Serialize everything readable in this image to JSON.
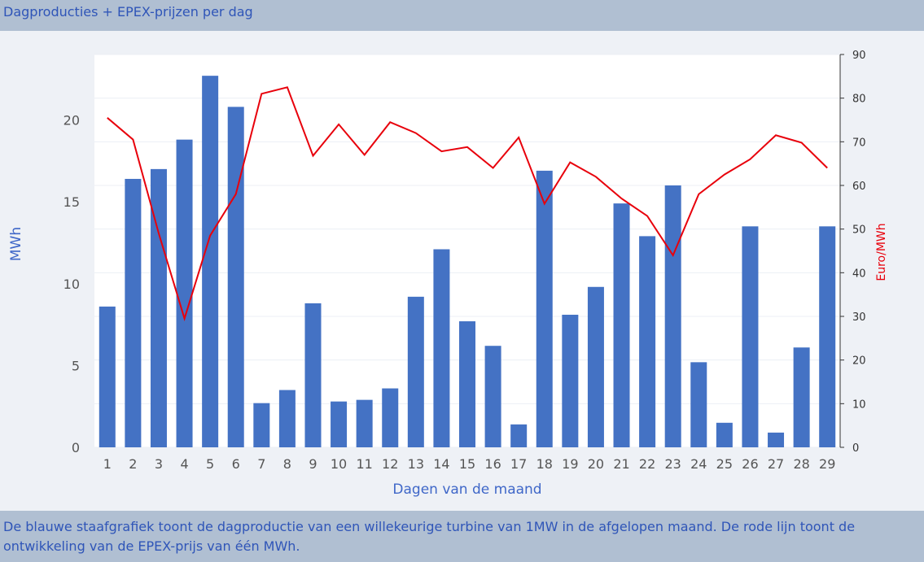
{
  "header": {
    "title": "Dagproducties + EPEX-prijzen per dag"
  },
  "footer": {
    "text": "De blauwe staafgrafiek toont de dagproductie van een willekeurige turbine van 1MW in de afgelopen maand. De rode lijn toont de ontwikkeling van de EPEX-prijs van één MWh."
  },
  "colors": {
    "bar": "#4472c4",
    "line": "#e8000b",
    "axis_title_left": "#3f67c8",
    "axis_title_right": "#e8000b"
  },
  "chart_data": {
    "type": "bar",
    "xlabel": "Dagen van de maand",
    "ylabel": "MWh",
    "y2label": "Euro/MWh",
    "categories": [
      "1",
      "2",
      "3",
      "4",
      "5",
      "6",
      "7",
      "8",
      "9",
      "10",
      "11",
      "12",
      "13",
      "14",
      "15",
      "16",
      "17",
      "18",
      "19",
      "20",
      "21",
      "22",
      "23",
      "24",
      "25",
      "26",
      "27",
      "28",
      "29"
    ],
    "ylim": [
      0,
      24
    ],
    "yticks": [
      0,
      5,
      10,
      15,
      20
    ],
    "y2lim": [
      0,
      90
    ],
    "y2ticks": [
      0,
      10,
      20,
      30,
      40,
      50,
      60,
      70,
      80,
      90
    ],
    "series": [
      {
        "type": "bar",
        "axis": "left",
        "values": [
          8.6,
          16.4,
          17.0,
          18.8,
          22.7,
          20.8,
          2.7,
          3.5,
          8.8,
          2.8,
          2.9,
          3.6,
          9.2,
          12.1,
          7.7,
          6.2,
          1.4,
          16.9,
          8.1,
          9.8,
          14.9,
          12.9,
          16.0,
          5.2,
          1.5,
          13.5,
          0.9,
          6.1,
          13.5
        ]
      },
      {
        "type": "line",
        "axis": "right",
        "values": [
          75.5,
          70.5,
          49.0,
          29.5,
          48.5,
          58.0,
          81.0,
          82.5,
          66.8,
          74.0,
          67.0,
          74.5,
          72.0,
          67.8,
          68.8,
          64.0,
          71.0,
          55.8,
          65.3,
          62.0,
          57.0,
          53.0,
          44.0,
          58.0,
          62.5,
          66.0,
          71.5,
          69.8,
          64.0
        ]
      }
    ]
  }
}
